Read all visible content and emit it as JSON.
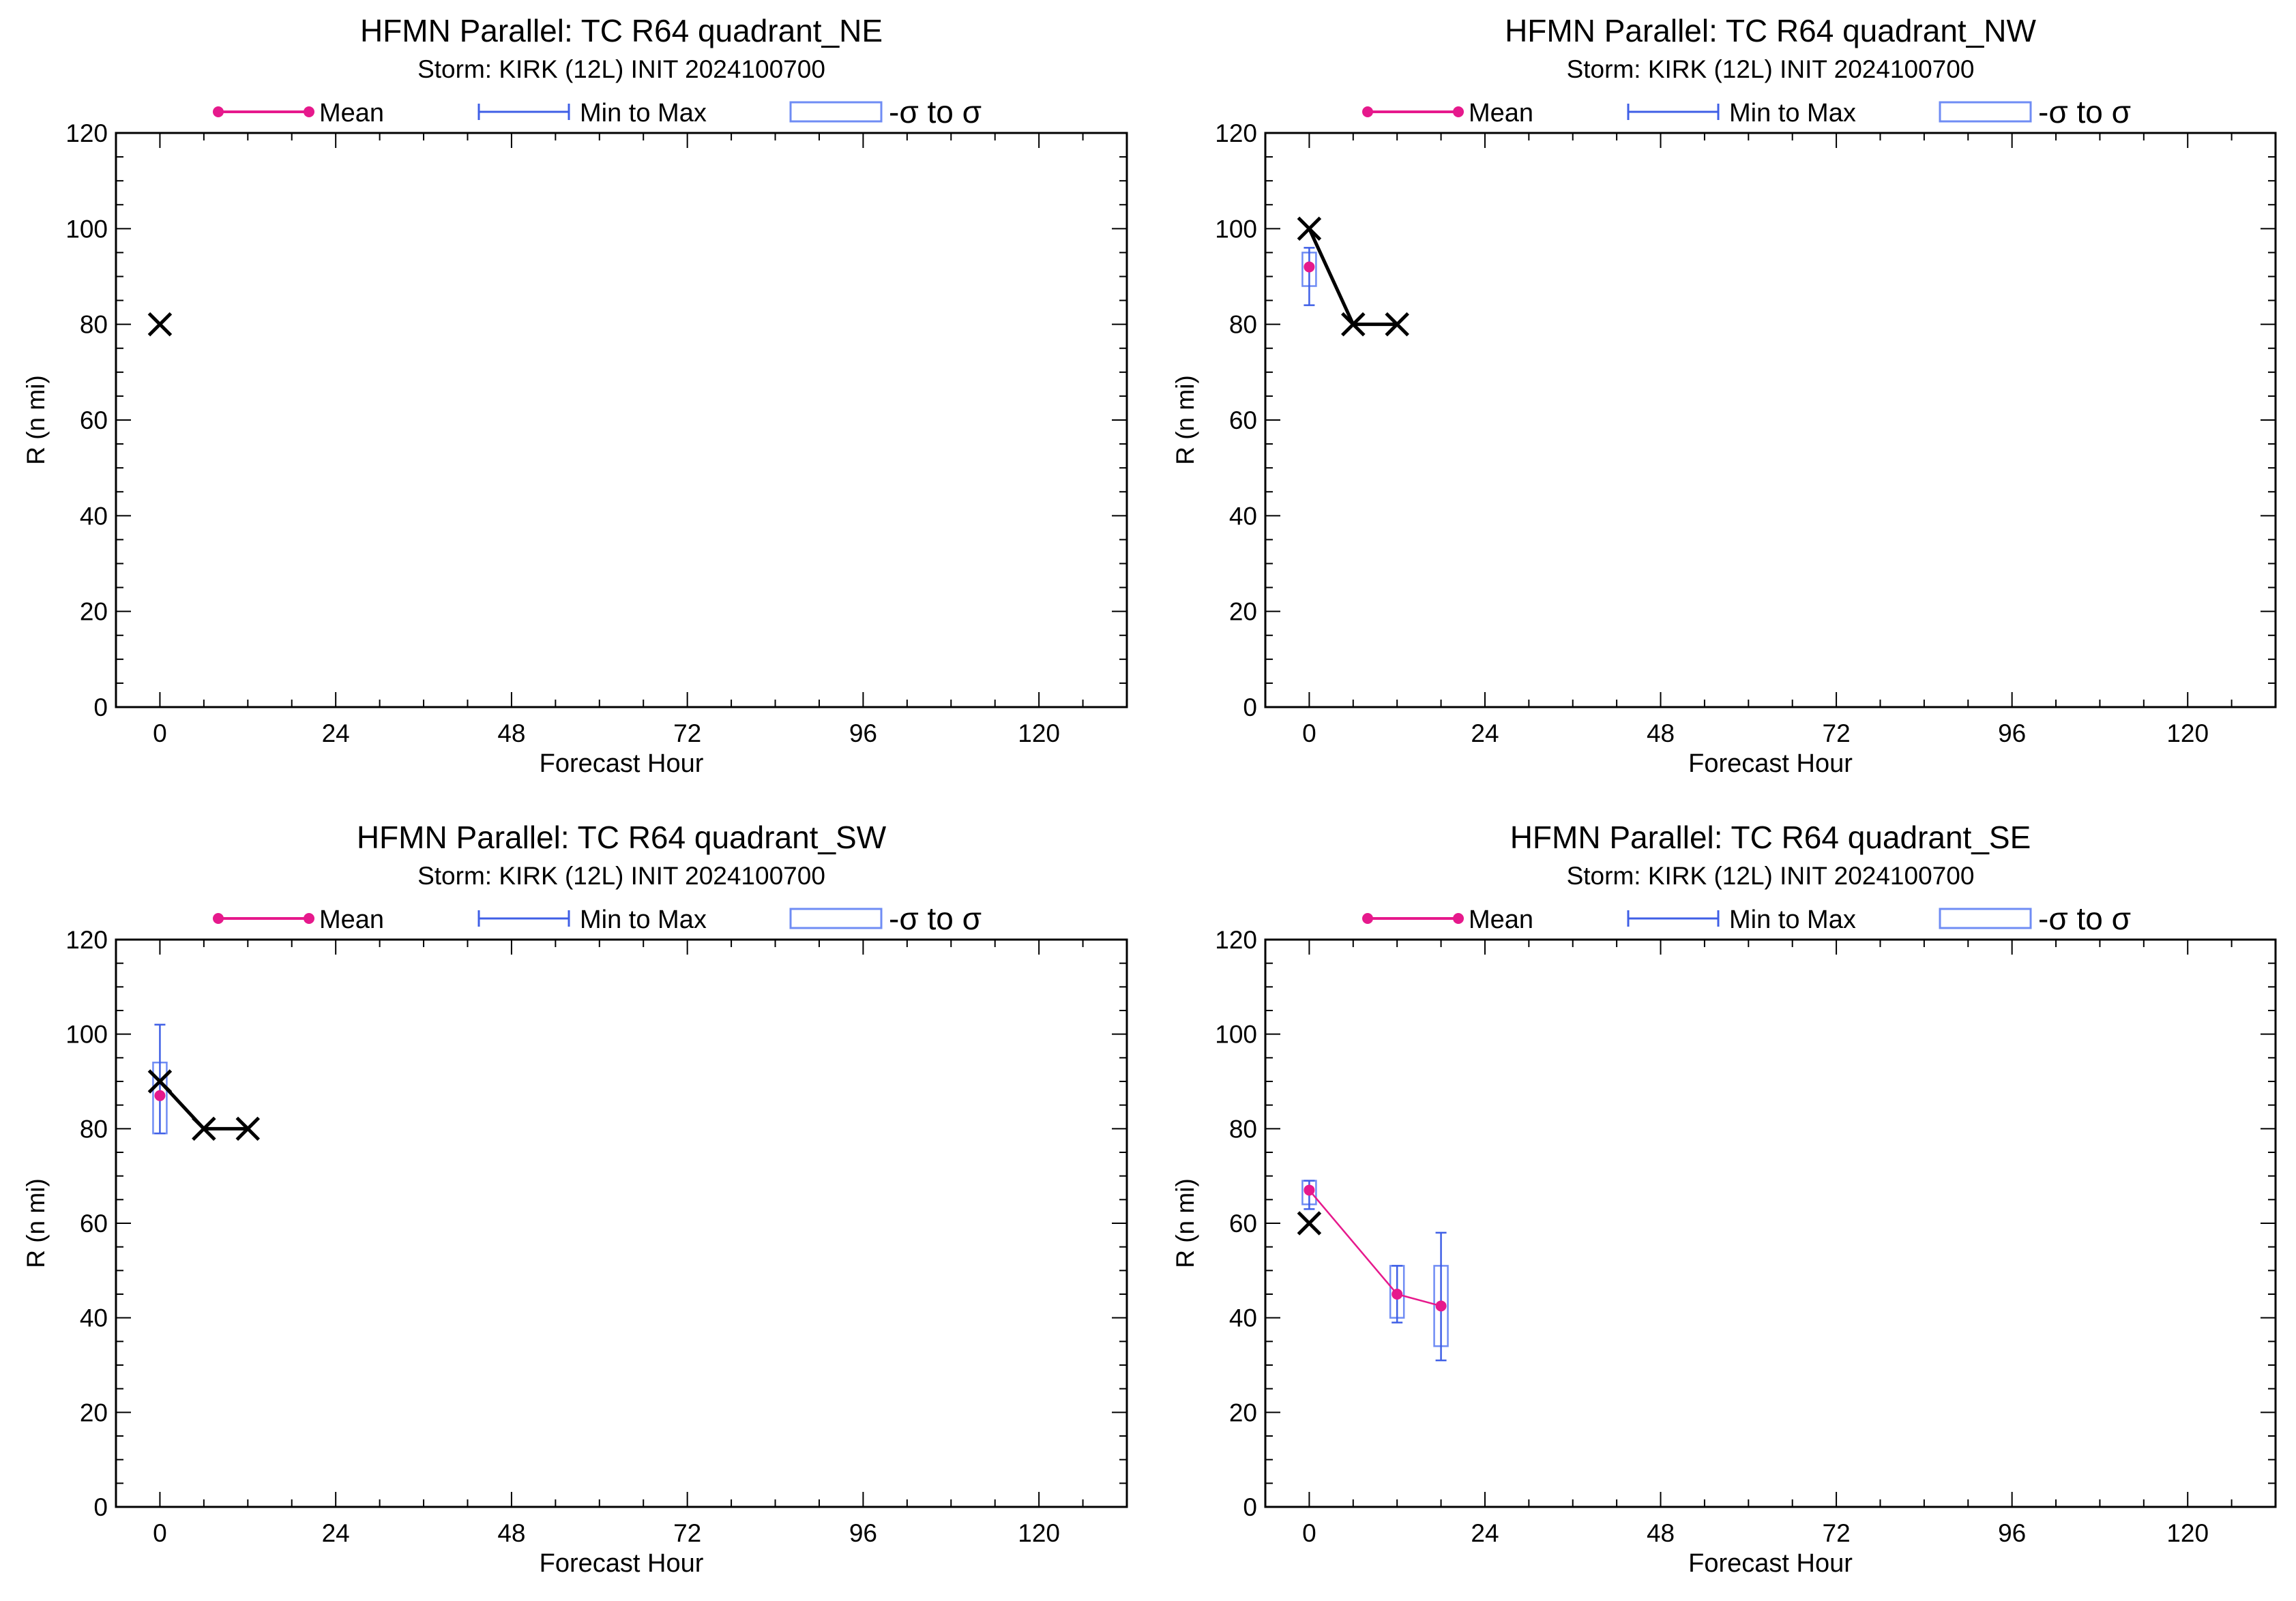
{
  "figure": {
    "background": "#ffffff"
  },
  "colors": {
    "mean": "#e6198c",
    "range": "#3f5fe6",
    "sigma_box": "#6f8cf4",
    "observed": "#000000",
    "axis": "#000000"
  },
  "icons": {
    "observed_marker": "x-mark-icon",
    "mean_marker": "filled-circle-icon"
  },
  "legend": {
    "mean": "Mean",
    "range": "Min to Max",
    "sigma": "-σ to σ"
  },
  "chart_data": [
    {
      "type": "line",
      "title": "HFMN Parallel: TC  R64 quadrant_NE",
      "subtitle": "Storm: KIRK (12L) INIT 2024100700",
      "xlabel": "Forecast Hour",
      "ylabel": "R (n mi)",
      "xlim": [
        -6,
        132
      ],
      "ylim": [
        0,
        120
      ],
      "xticks": [
        0,
        24,
        48,
        72,
        96,
        120
      ],
      "yticks": [
        0,
        20,
        40,
        60,
        80,
        100,
        120
      ],
      "legend_position": "top",
      "observed": {
        "x": [
          0
        ],
        "y": [
          80
        ]
      },
      "ensemble": []
    },
    {
      "type": "line",
      "title": "HFMN Parallel: TC  R64 quadrant_NW",
      "subtitle": "Storm: KIRK (12L) INIT 2024100700",
      "xlabel": "Forecast Hour",
      "ylabel": "R (n mi)",
      "xlim": [
        -6,
        132
      ],
      "ylim": [
        0,
        120
      ],
      "xticks": [
        0,
        24,
        48,
        72,
        96,
        120
      ],
      "yticks": [
        0,
        20,
        40,
        60,
        80,
        100,
        120
      ],
      "legend_position": "top",
      "observed": {
        "x": [
          0,
          6,
          12
        ],
        "y": [
          100,
          80,
          80
        ]
      },
      "ensemble": [
        {
          "x": 0,
          "mean": 92,
          "min": 84,
          "max": 96,
          "sigma_low": 88,
          "sigma_high": 95
        }
      ]
    },
    {
      "type": "line",
      "title": "HFMN Parallel: TC  R64 quadrant_SW",
      "subtitle": "Storm: KIRK (12L) INIT 2024100700",
      "xlabel": "Forecast Hour",
      "ylabel": "R (n mi)",
      "xlim": [
        -6,
        132
      ],
      "ylim": [
        0,
        120
      ],
      "xticks": [
        0,
        24,
        48,
        72,
        96,
        120
      ],
      "yticks": [
        0,
        20,
        40,
        60,
        80,
        100,
        120
      ],
      "legend_position": "top",
      "observed": {
        "x": [
          0,
          6,
          12
        ],
        "y": [
          90,
          80,
          80
        ]
      },
      "ensemble": [
        {
          "x": 0,
          "mean": 87,
          "min": 79,
          "max": 102,
          "sigma_low": 79,
          "sigma_high": 94
        }
      ]
    },
    {
      "type": "line",
      "title": "HFMN Parallel: TC  R64 quadrant_SE",
      "subtitle": "Storm: KIRK (12L) INIT 2024100700",
      "xlabel": "Forecast Hour",
      "ylabel": "R (n mi)",
      "xlim": [
        -6,
        132
      ],
      "ylim": [
        0,
        120
      ],
      "xticks": [
        0,
        24,
        48,
        72,
        96,
        120
      ],
      "yticks": [
        0,
        20,
        40,
        60,
        80,
        100,
        120
      ],
      "legend_position": "top",
      "observed": {
        "x": [
          0
        ],
        "y": [
          60
        ]
      },
      "ensemble": [
        {
          "x": 0,
          "mean": 67,
          "min": 63,
          "max": 69,
          "sigma_low": 64,
          "sigma_high": 69
        },
        {
          "x": 12,
          "mean": 45,
          "min": 39,
          "max": 51,
          "sigma_low": 40,
          "sigma_high": 51
        },
        {
          "x": 18,
          "mean": 42.5,
          "min": 31,
          "max": 58,
          "sigma_low": 34,
          "sigma_high": 51
        }
      ]
    }
  ]
}
